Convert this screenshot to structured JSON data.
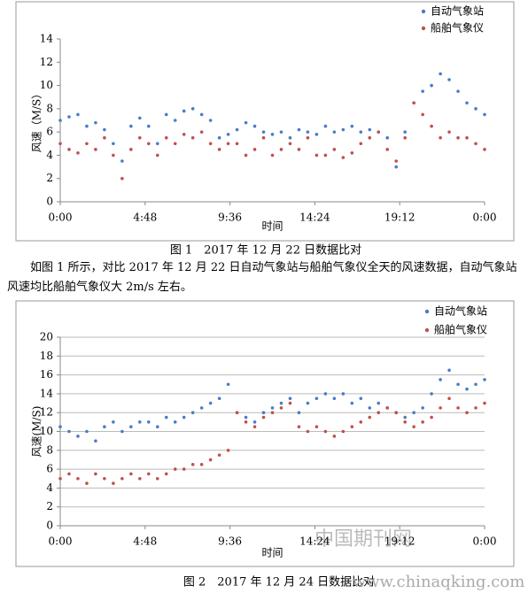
{
  "chart_data": [
    {
      "type": "scatter",
      "y_label": "风速（M/S）",
      "x_label": "时间",
      "grid": false,
      "legend": "upper right",
      "xlim": [
        0,
        24
      ],
      "xticks": [
        {
          "value": 0,
          "label": "0:00"
        },
        {
          "value": 4.8,
          "label": "4:48"
        },
        {
          "value": 9.6,
          "label": "9:36"
        },
        {
          "value": 14.4,
          "label": "14:24"
        },
        {
          "value": 19.2,
          "label": "19:12"
        },
        {
          "value": 24,
          "label": "0:00"
        }
      ],
      "ylim": [
        0,
        14
      ],
      "yticks": [
        0,
        2,
        4,
        6,
        8,
        10,
        12,
        14
      ],
      "x": [
        0,
        0.5,
        1,
        1.5,
        2,
        2.5,
        3,
        3.5,
        4,
        4.5,
        5,
        5.5,
        6,
        6.5,
        7,
        7.5,
        8,
        8.5,
        9,
        9.5,
        10,
        10.5,
        11,
        11.5,
        12,
        12.5,
        13,
        13.5,
        14,
        14.5,
        15,
        15.5,
        16,
        16.5,
        17,
        17.5,
        18,
        18.5,
        19,
        19.5,
        20,
        20.5,
        21,
        21.5,
        22,
        22.5,
        23,
        23.5,
        24
      ],
      "series": [
        {
          "name": "自动气象站",
          "color": "#4a7bc8",
          "values": [
            7.0,
            7.3,
            7.5,
            6.5,
            6.8,
            6.2,
            5.0,
            3.5,
            6.5,
            7.2,
            6.5,
            5.0,
            7.5,
            7.0,
            7.8,
            8.0,
            7.5,
            7.0,
            5.5,
            5.8,
            6.2,
            6.8,
            6.5,
            6.0,
            5.8,
            6.0,
            5.5,
            6.2,
            6.0,
            5.8,
            6.5,
            6.0,
            6.2,
            6.5,
            6.0,
            6.2,
            6.0,
            5.5,
            3.0,
            6.0,
            8.5,
            9.5,
            10.0,
            11.0,
            10.5,
            9.5,
            8.5,
            8.0,
            7.5
          ]
        },
        {
          "name": "船舶气象仪",
          "color": "#c0504d",
          "values": [
            5.0,
            4.5,
            4.2,
            5.0,
            4.5,
            5.5,
            4.0,
            2.0,
            4.5,
            5.5,
            5.0,
            4.0,
            5.5,
            5.0,
            5.8,
            5.5,
            6.0,
            5.0,
            4.5,
            5.0,
            5.0,
            4.0,
            4.5,
            5.5,
            4.0,
            4.5,
            5.0,
            4.5,
            5.5,
            4.0,
            4.0,
            4.5,
            3.8,
            4.2,
            5.0,
            5.5,
            6.0,
            4.5,
            3.5,
            5.5,
            8.5,
            7.5,
            6.5,
            5.5,
            6.0,
            5.5,
            5.5,
            5.0,
            4.5
          ]
        }
      ]
    },
    {
      "type": "scatter",
      "y_label": "风速(M/S)",
      "x_label": "时间",
      "grid": true,
      "legend": "upper right",
      "xlim": [
        0,
        24
      ],
      "xticks": [
        {
          "value": 0,
          "label": "0:00"
        },
        {
          "value": 4.8,
          "label": "4:48"
        },
        {
          "value": 9.6,
          "label": "9:36"
        },
        {
          "value": 14.4,
          "label": "14:24"
        },
        {
          "value": 19.2,
          "label": "19:12"
        },
        {
          "value": 24,
          "label": "0:00"
        }
      ],
      "ylim": [
        0,
        20
      ],
      "yticks": [
        0,
        2,
        4,
        6,
        8,
        10,
        12,
        14,
        16,
        18,
        20
      ],
      "x": [
        0,
        0.5,
        1,
        1.5,
        2,
        2.5,
        3,
        3.5,
        4,
        4.5,
        5,
        5.5,
        6,
        6.5,
        7,
        7.5,
        8,
        8.5,
        9,
        9.5,
        10,
        10.5,
        11,
        11.5,
        12,
        12.5,
        13,
        13.5,
        14,
        14.5,
        15,
        15.5,
        16,
        16.5,
        17,
        17.5,
        18,
        18.5,
        19,
        19.5,
        20,
        20.5,
        21,
        21.5,
        22,
        22.5,
        23,
        23.5,
        24
      ],
      "series": [
        {
          "name": "自动气象站",
          "color": "#4a7bc8",
          "values": [
            10.5,
            10.0,
            9.5,
            10.0,
            9.0,
            10.5,
            11.0,
            10.0,
            10.5,
            11.0,
            11.0,
            10.5,
            11.5,
            11.0,
            11.5,
            12.0,
            12.5,
            13.0,
            13.5,
            15.0,
            12.0,
            11.5,
            11.0,
            12.0,
            12.5,
            13.0,
            13.5,
            12.0,
            13.0,
            13.5,
            14.0,
            13.5,
            14.0,
            13.0,
            13.5,
            12.5,
            13.0,
            12.5,
            12.0,
            11.5,
            12.0,
            12.5,
            14.0,
            15.5,
            16.5,
            15.0,
            14.5,
            15.0,
            15.5
          ]
        },
        {
          "name": "船舶气象仪",
          "color": "#c0504d",
          "values": [
            5.0,
            5.5,
            5.0,
            4.5,
            5.5,
            5.0,
            4.5,
            5.0,
            5.5,
            5.0,
            5.5,
            5.0,
            5.5,
            6.0,
            6.0,
            6.5,
            6.5,
            7.0,
            7.5,
            8.0,
            12.0,
            11.0,
            10.5,
            11.5,
            12.0,
            12.5,
            13.0,
            10.5,
            10.0,
            10.5,
            10.0,
            9.5,
            10.0,
            10.5,
            11.0,
            11.5,
            12.0,
            12.5,
            12.0,
            11.0,
            10.5,
            11.0,
            11.5,
            12.5,
            13.5,
            12.5,
            12.0,
            12.5,
            13.0
          ]
        }
      ]
    }
  ],
  "document": {
    "caption1": "图 1　2017 年 12 月 22 日数据比对",
    "paragraph": "如图 1 所示，对比 2017 年 12 月 22 日自动气象站与船舶气象仪全天的风速数据，自动气象站风速均比船舶气象仪大 2m/s 左右。",
    "caption2": "图 2　2017 年 12 月 24 日数据比对",
    "watermark_name": "中国期刊网",
    "watermark_url": "www.chinaqking.com"
  }
}
